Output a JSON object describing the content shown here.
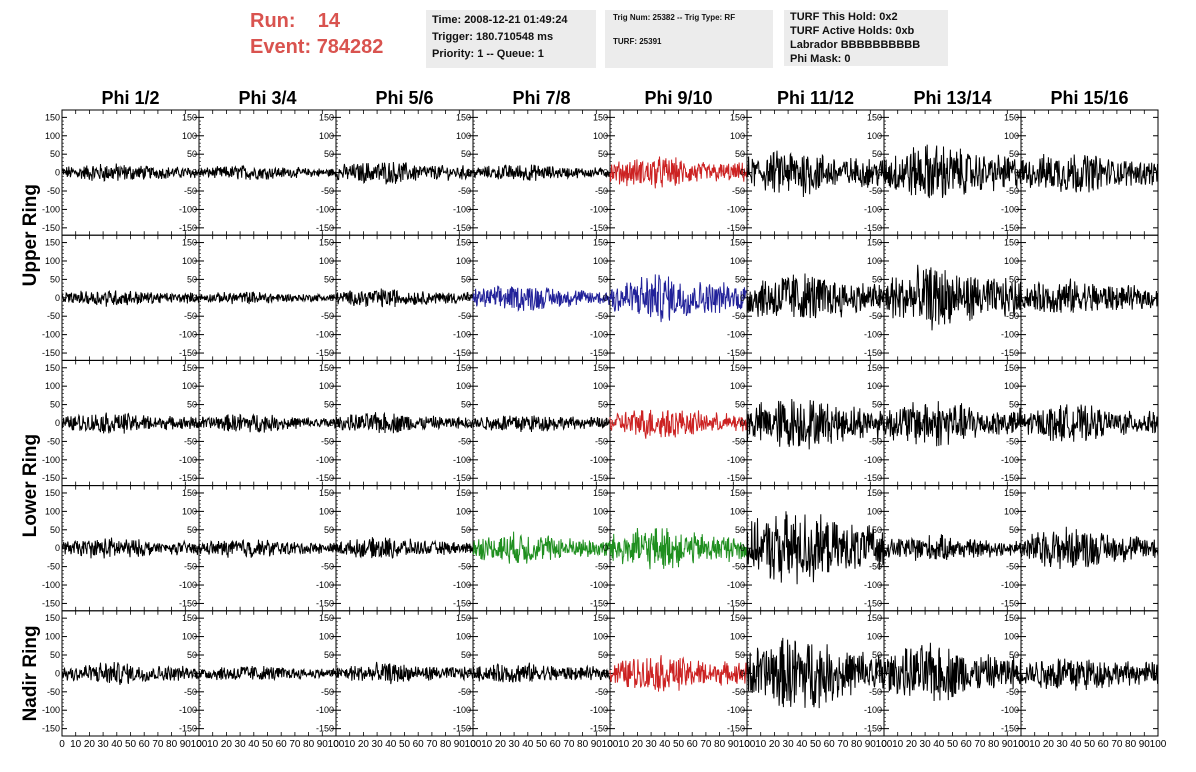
{
  "header": {
    "run_label": "Run:",
    "run_value": "14",
    "event_label": "Event:",
    "event_value": "784282",
    "time_box": [
      "Time: 2008-12-21 01:49:24",
      "Trigger: 180.710548 ms",
      "Priority: 1 -- Queue: 1"
    ],
    "trig_box": [
      "Trig Num: 25382 -- Trig Type: RF",
      "TURF: 25391"
    ],
    "turf_box": [
      "TURF This Hold: 0x2",
      "TURF Active Holds: 0xb",
      "Labrador BBBBBBBBBB",
      "Phi Mask: 0"
    ],
    "colors": {
      "run_text": "#d9534f",
      "box_bg": "#ececec"
    }
  },
  "chart_data": {
    "type": "line",
    "columns": [
      "Phi 1/2",
      "Phi 3/4",
      "Phi 5/6",
      "Phi 7/8",
      "Phi 9/10",
      "Phi 11/12",
      "Phi 13/14",
      "Phi 15/16"
    ],
    "rows": [
      "Upper Ring",
      "Lower Ring",
      "Nadir Ring"
    ],
    "panel_rows": 5,
    "ylim": [
      -170,
      170
    ],
    "yticks": [
      -150,
      -100,
      -50,
      0,
      50,
      100,
      150
    ],
    "ytick_labels": [
      "-150",
      "-100",
      "-50",
      "0",
      "50",
      "100",
      "150"
    ],
    "xlim": [
      0,
      100
    ],
    "xticks": [
      0,
      10,
      20,
      30,
      40,
      50,
      60,
      70,
      80,
      90,
      100
    ],
    "xtick_labels": [
      "0",
      "10",
      "20",
      "30",
      "40",
      "50",
      "60",
      "70",
      "80",
      "90",
      "100"
    ],
    "colors": {
      "default": "#000000",
      "red": "#cc2222",
      "blue": "#22229a",
      "green": "#1f8f1f"
    },
    "panels": [
      [
        {
          "amp": 18,
          "color": "default"
        },
        {
          "amp": 14,
          "color": "default"
        },
        {
          "amp": 22,
          "color": "default"
        },
        {
          "amp": 16,
          "color": "default"
        },
        {
          "amp": 30,
          "color": "red"
        },
        {
          "amp": 45,
          "color": "default"
        },
        {
          "amp": 55,
          "color": "default"
        },
        {
          "amp": 40,
          "color": "default"
        }
      ],
      [
        {
          "amp": 16,
          "color": "default"
        },
        {
          "amp": 12,
          "color": "default"
        },
        {
          "amp": 18,
          "color": "default"
        },
        {
          "amp": 25,
          "color": "blue"
        },
        {
          "amp": 45,
          "color": "blue"
        },
        {
          "amp": 50,
          "color": "default"
        },
        {
          "amp": 60,
          "color": "default"
        },
        {
          "amp": 35,
          "color": "default"
        }
      ],
      [
        {
          "amp": 20,
          "color": "default"
        },
        {
          "amp": 18,
          "color": "default"
        },
        {
          "amp": 20,
          "color": "default"
        },
        {
          "amp": 18,
          "color": "default"
        },
        {
          "amp": 30,
          "color": "red"
        },
        {
          "amp": 50,
          "color": "default"
        },
        {
          "amp": 45,
          "color": "default"
        },
        {
          "amp": 35,
          "color": "default"
        }
      ],
      [
        {
          "amp": 20,
          "color": "default"
        },
        {
          "amp": 18,
          "color": "default"
        },
        {
          "amp": 20,
          "color": "default"
        },
        {
          "amp": 30,
          "color": "green"
        },
        {
          "amp": 40,
          "color": "green"
        },
        {
          "amp": 70,
          "color": "default"
        },
        {
          "amp": 25,
          "color": "default"
        },
        {
          "amp": 40,
          "color": "default"
        }
      ],
      [
        {
          "amp": 22,
          "color": "default"
        },
        {
          "amp": 16,
          "color": "default"
        },
        {
          "amp": 20,
          "color": "default"
        },
        {
          "amp": 20,
          "color": "default"
        },
        {
          "amp": 35,
          "color": "red"
        },
        {
          "amp": 70,
          "color": "default"
        },
        {
          "amp": 55,
          "color": "default"
        },
        {
          "amp": 35,
          "color": "default"
        }
      ]
    ]
  }
}
